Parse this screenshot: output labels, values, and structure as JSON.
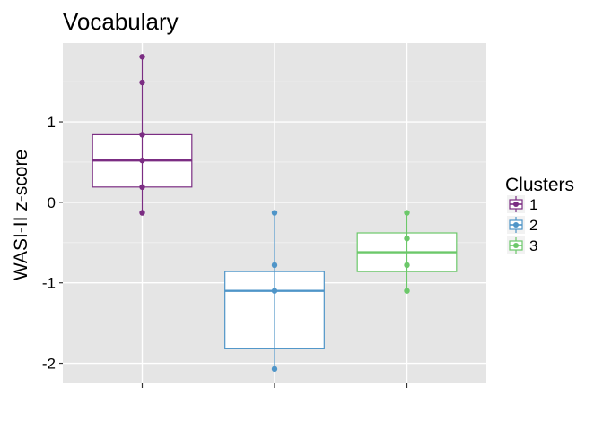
{
  "chart_data": {
    "type": "boxplot",
    "title": "Vocabulary",
    "xlabel": "",
    "ylabel": "WASI-II z-score",
    "ylim": [
      -2.25,
      1.98
    ],
    "yticks": [
      {
        "value": 1,
        "label": "1"
      },
      {
        "value": 0,
        "label": "0"
      },
      {
        "value": -1,
        "label": "-1"
      },
      {
        "value": -2,
        "label": "-2"
      }
    ],
    "y_minor_gridlines": [
      1.5,
      0.5,
      -0.5,
      -1.5
    ],
    "grid": true,
    "legend": {
      "title": "Clusters",
      "placement": "right"
    },
    "series": [
      {
        "name": "1",
        "color": "#7b2d83",
        "box": {
          "min": -0.13,
          "q1": 0.19,
          "median": 0.52,
          "q3": 0.84,
          "max": 1.81
        },
        "points": [
          1.81,
          1.49,
          0.84,
          0.52,
          0.19,
          -0.13
        ]
      },
      {
        "name": "2",
        "color": "#4f95c8",
        "box": {
          "min": -2.07,
          "q1": -1.82,
          "median": -1.1,
          "q3": -0.86,
          "max": -0.13
        },
        "points": [
          -0.13,
          -0.78,
          -1.1,
          -2.07
        ]
      },
      {
        "name": "3",
        "color": "#6cc86a",
        "box": {
          "min": -1.1,
          "q1": -0.86,
          "median": -0.62,
          "q3": -0.38,
          "max": -0.13
        },
        "points": [
          -0.13,
          -0.45,
          -0.78,
          -1.1
        ]
      }
    ]
  }
}
